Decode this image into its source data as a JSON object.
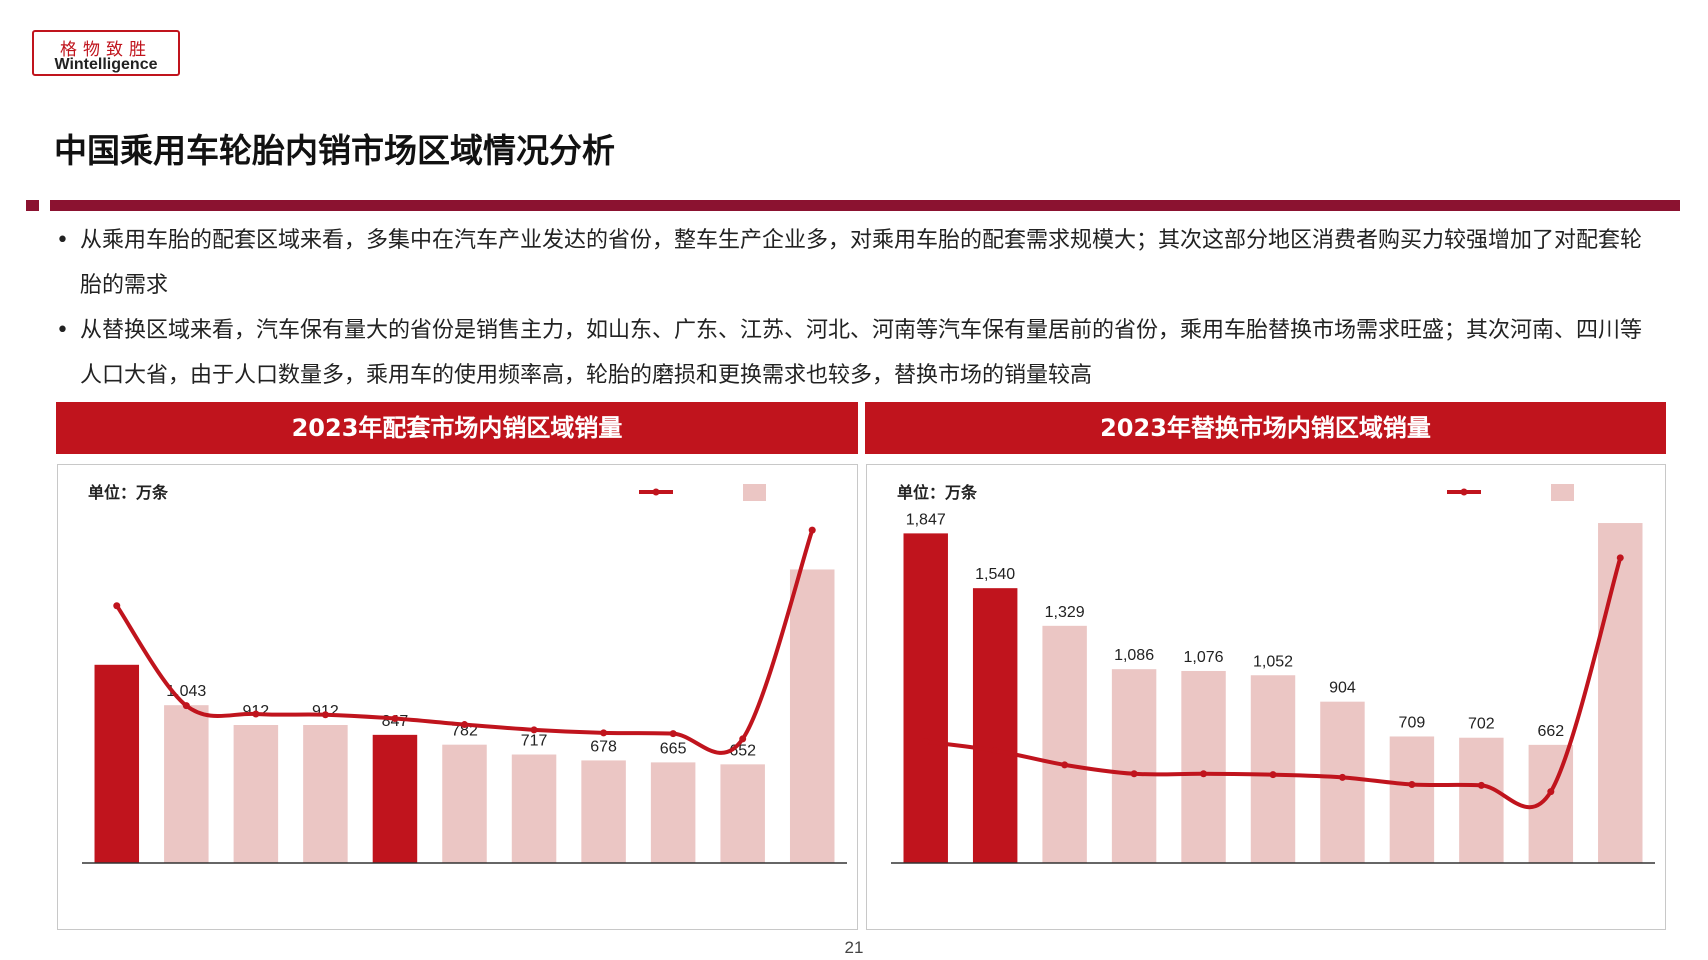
{
  "logo": {
    "cn": "格物致胜",
    "en": "Wintelligence"
  },
  "page": {
    "title": "中国乘用车轮胎内销市场区域情况分析",
    "bullets": [
      "从乘用车胎的配套区域来看，多集中在汽车产业发达的省份，整车生产企业多，对乘用车胎的配套需求规模大；其次这部分地区消费者购买力较强增加了对配套轮胎的需求",
      "从替换区域来看，汽车保有量大的省份是销售主力，如山东、广东、江苏、河北、河南等汽车保有量居前的省份，乘用车胎替换市场需求旺盛；其次河南、四川等人口大省，由于人口数量多，乘用车的使用频率高，轮胎的磨损和更换需求也较多，替换市场的销量较高"
    ],
    "page_number": "21"
  },
  "colors": {
    "accent": "#c0141d",
    "bar_light": "#ebc6c4",
    "rule": "#8b1230"
  },
  "chart_data": [
    {
      "type": "bar",
      "title": "2023年配套市场内销区域销量",
      "unit_label": "单位：万条",
      "values": [
        null,
        1043,
        912,
        912,
        847,
        782,
        717,
        678,
        665,
        652,
        null
      ],
      "value_labels": [
        "",
        "1,043",
        "912",
        "912",
        "847",
        "782",
        "717",
        "678",
        "665",
        "652",
        ""
      ],
      "highlight": [
        true,
        false,
        false,
        false,
        true,
        false,
        false,
        false,
        false,
        false,
        false
      ],
      "bar_heights_est": [
        1310,
        1043,
        912,
        912,
        847,
        782,
        717,
        678,
        665,
        652,
        1940
      ],
      "line_values_est": [
        1700,
        1040,
        985,
        980,
        955,
        915,
        880,
        860,
        855,
        820,
        2200
      ],
      "ylim": [
        0,
        2300
      ]
    },
    {
      "type": "bar",
      "title": "2023年替换市场内销区域销量",
      "unit_label": "单位：万条",
      "values": [
        1847,
        1540,
        1329,
        1086,
        1076,
        1052,
        904,
        709,
        702,
        662,
        null
      ],
      "value_labels": [
        "1,847",
        "1,540",
        "1,329",
        "1,086",
        "1,076",
        "1,052",
        "904",
        "709",
        "702",
        "662",
        ""
      ],
      "highlight": [
        true,
        true,
        false,
        false,
        false,
        false,
        false,
        false,
        false,
        false,
        false
      ],
      "bar_heights_est": [
        1847,
        1540,
        1329,
        1086,
        1076,
        1052,
        904,
        709,
        702,
        662,
        1905
      ],
      "line_values_est": [
        680,
        630,
        550,
        500,
        500,
        495,
        480,
        440,
        435,
        400,
        1710
      ],
      "ylim": [
        0,
        1950
      ]
    }
  ]
}
